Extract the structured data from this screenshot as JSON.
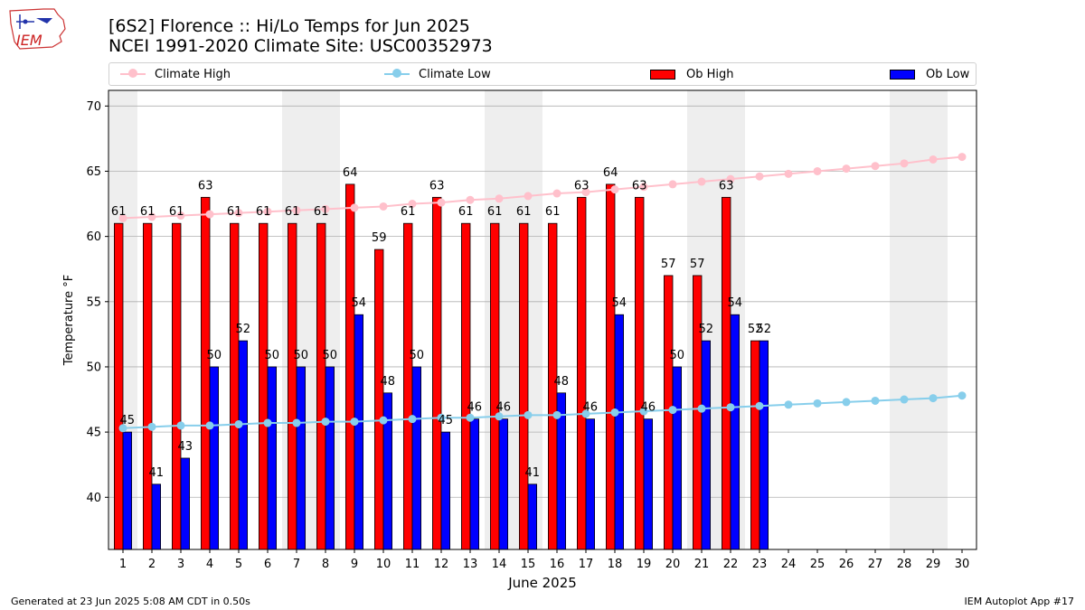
{
  "header": {
    "logo_text": "IEM",
    "title_line1": "[6S2] Florence :: Hi/Lo Temps for Jun 2025",
    "title_line2": "NCEI 1991-2020 Climate Site: USC00352973"
  },
  "legend": {
    "climate_high": "Climate High",
    "climate_low": "Climate Low",
    "ob_high": "Ob High",
    "ob_low": "Ob Low"
  },
  "footer": {
    "generated": "Generated at 23 Jun 2025 5:08 AM CDT in 0.50s",
    "app": "IEM Autoplot App #17"
  },
  "colors": {
    "ob_high": "#ff0000",
    "ob_low": "#0000ff",
    "climate_high": "#ffc0cb",
    "climate_low": "#87ceeb",
    "weekend_band": "#eeeeee",
    "grid": "#b0b0b0"
  },
  "chart_data": {
    "type": "bar",
    "xlabel": "June 2025",
    "ylabel": "Temperature °F",
    "ylim": [
      36,
      71.2
    ],
    "yticks": [
      40,
      45,
      50,
      55,
      60,
      65,
      70
    ],
    "xlim": [
      0.5,
      30.5
    ],
    "days": [
      1,
      2,
      3,
      4,
      5,
      6,
      7,
      8,
      9,
      10,
      11,
      12,
      13,
      14,
      15,
      16,
      17,
      18,
      19,
      20,
      21,
      22,
      23,
      24,
      25,
      26,
      27,
      28,
      29,
      30
    ],
    "weekend_days": [
      1,
      7,
      8,
      14,
      15,
      21,
      22,
      28,
      29
    ],
    "series": [
      {
        "name": "Ob High",
        "kind": "bar",
        "values": [
          61,
          61,
          61,
          63,
          61,
          61,
          61,
          61,
          64,
          59,
          61,
          63,
          61,
          61,
          61,
          61,
          63,
          64,
          63,
          57,
          57,
          63,
          52
        ]
      },
      {
        "name": "Ob Low",
        "kind": "bar",
        "values": [
          45,
          41,
          43,
          50,
          52,
          50,
          50,
          50,
          54,
          48,
          50,
          45,
          46,
          46,
          41,
          48,
          46,
          54,
          46,
          50,
          52,
          54,
          52
        ]
      },
      {
        "name": "Climate High",
        "kind": "line",
        "values": [
          61.4,
          61.5,
          61.6,
          61.7,
          61.8,
          61.9,
          62.0,
          62.1,
          62.2,
          62.3,
          62.5,
          62.6,
          62.8,
          62.9,
          63.1,
          63.3,
          63.4,
          63.6,
          63.8,
          64.0,
          64.2,
          64.4,
          64.6,
          64.8,
          65.0,
          65.2,
          65.4,
          65.6,
          65.9,
          66.1
        ]
      },
      {
        "name": "Climate Low",
        "kind": "line",
        "values": [
          45.3,
          45.4,
          45.5,
          45.5,
          45.6,
          45.7,
          45.7,
          45.8,
          45.8,
          45.9,
          46.0,
          46.1,
          46.1,
          46.2,
          46.3,
          46.3,
          46.4,
          46.5,
          46.6,
          46.7,
          46.8,
          46.9,
          47.0,
          47.1,
          47.2,
          47.3,
          47.4,
          47.5,
          47.6,
          47.8
        ]
      }
    ]
  }
}
